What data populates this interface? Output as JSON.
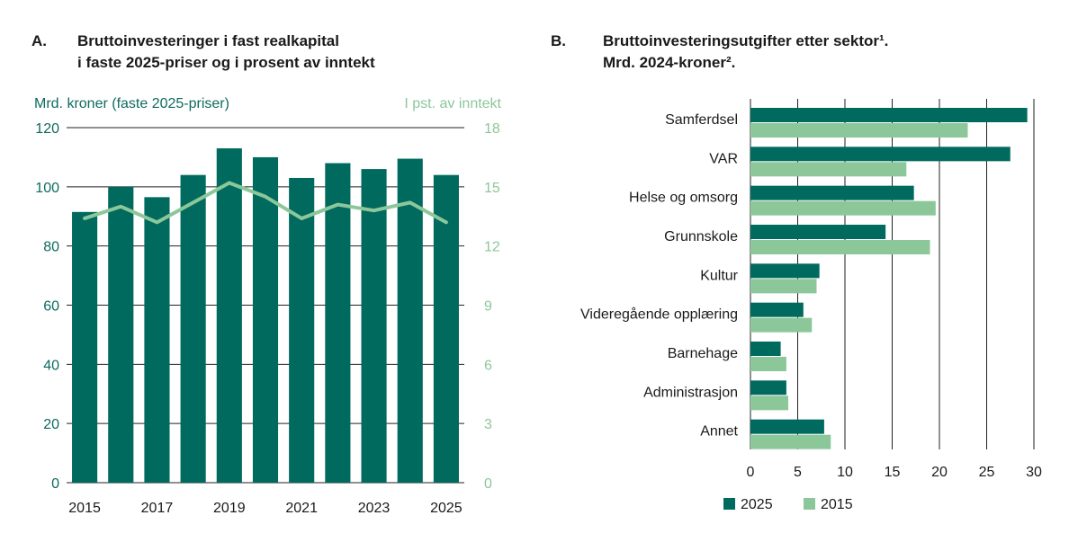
{
  "colors": {
    "dark": "#006a5f",
    "light": "#8cc79a",
    "grid": "#222222"
  },
  "chart_data": [
    {
      "type": "bar",
      "panel_label": "A.",
      "title_lines": [
        "Bruttoinvesteringer i fast realkapital",
        "i faste 2025-priser og i prosent av inntekt"
      ],
      "ylabel_left": "Mrd. kroner (faste 2025-priser)",
      "ylabel_right": "I pst. av inntekt",
      "categories": [
        "2015",
        "2016",
        "2017",
        "2018",
        "2019",
        "2020",
        "2021",
        "2022",
        "2023",
        "2024",
        "2025"
      ],
      "xtick_labels": [
        "2015",
        "",
        "2017",
        "",
        "2019",
        "",
        "2021",
        "",
        "2023",
        "",
        "2025"
      ],
      "series": [
        {
          "name": "Mrd. kroner (faste 2025-priser)",
          "type": "bar",
          "axis": "left",
          "values": [
            91.5,
            100,
            96.5,
            104,
            113,
            110,
            103,
            108,
            106,
            109.5,
            104
          ]
        },
        {
          "name": "I pst. av inntekt",
          "type": "line",
          "axis": "right",
          "values": [
            13.4,
            14.0,
            13.2,
            14.2,
            15.2,
            14.5,
            13.4,
            14.1,
            13.8,
            14.2,
            13.2
          ]
        }
      ],
      "ylim_left": [
        0,
        120
      ],
      "yticks_left": [
        0,
        20,
        40,
        60,
        80,
        100,
        120
      ],
      "ylim_right": [
        0,
        18
      ],
      "yticks_right": [
        0,
        3,
        6,
        9,
        12,
        15,
        18
      ],
      "grid": true
    },
    {
      "type": "bar",
      "orientation": "horizontal",
      "panel_label": "B.",
      "title_lines": [
        "Bruttoinvesteringsutgifter etter sektor¹.",
        "Mrd. 2024-kroner²."
      ],
      "categories": [
        "Samferdsel",
        "VAR",
        "Helse og omsorg",
        "Grunnskole",
        "Kultur",
        "Videregående opplæring",
        "Barnehage",
        "Administrasjon",
        "Annet"
      ],
      "series": [
        {
          "name": "2025",
          "values": [
            29.3,
            27.5,
            17.3,
            14.3,
            7.3,
            5.6,
            3.2,
            3.8,
            7.8
          ]
        },
        {
          "name": "2015",
          "values": [
            23.0,
            16.5,
            19.6,
            19.0,
            7.0,
            6.5,
            3.8,
            4.0,
            8.5
          ]
        }
      ],
      "xlim": [
        0,
        30
      ],
      "xticks": [
        0,
        5,
        10,
        15,
        20,
        25,
        30
      ],
      "legend_position": "bottom-left",
      "grid": true
    }
  ]
}
